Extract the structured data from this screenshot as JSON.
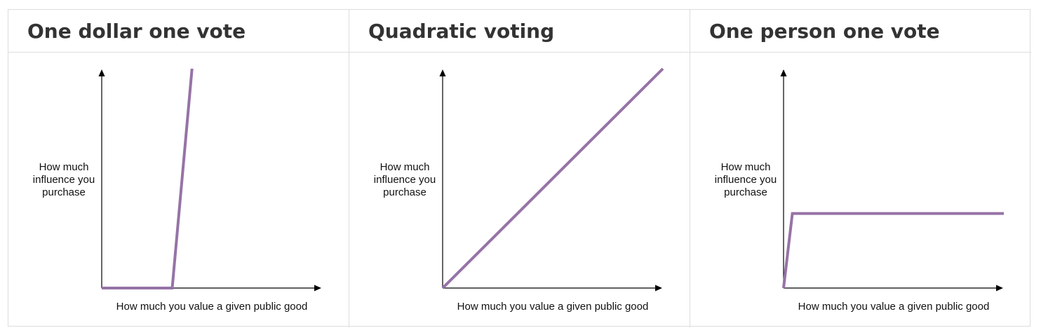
{
  "panels": [
    {
      "title": "One dollar one vote",
      "ylabel": "How much influence you purchase",
      "xlabel": "How much you value a given public good",
      "curve": [
        [
          0,
          0
        ],
        [
          0.32,
          0
        ],
        [
          0.41,
          1.0
        ]
      ]
    },
    {
      "title": "Quadratic voting",
      "ylabel": "How much influence you purchase",
      "xlabel": "How much you value a given public good",
      "curve": [
        [
          0,
          0
        ],
        [
          1.0,
          1.0
        ]
      ]
    },
    {
      "title": "One person one vote",
      "ylabel": "How much influence you purchase",
      "xlabel": "How much you value a given public good",
      "curve": [
        [
          0,
          0
        ],
        [
          0.04,
          0.34
        ],
        [
          1.0,
          0.34
        ]
      ]
    }
  ],
  "colors": {
    "curve": "#9673a6",
    "axis": "#000000",
    "border": "#dddddd"
  }
}
